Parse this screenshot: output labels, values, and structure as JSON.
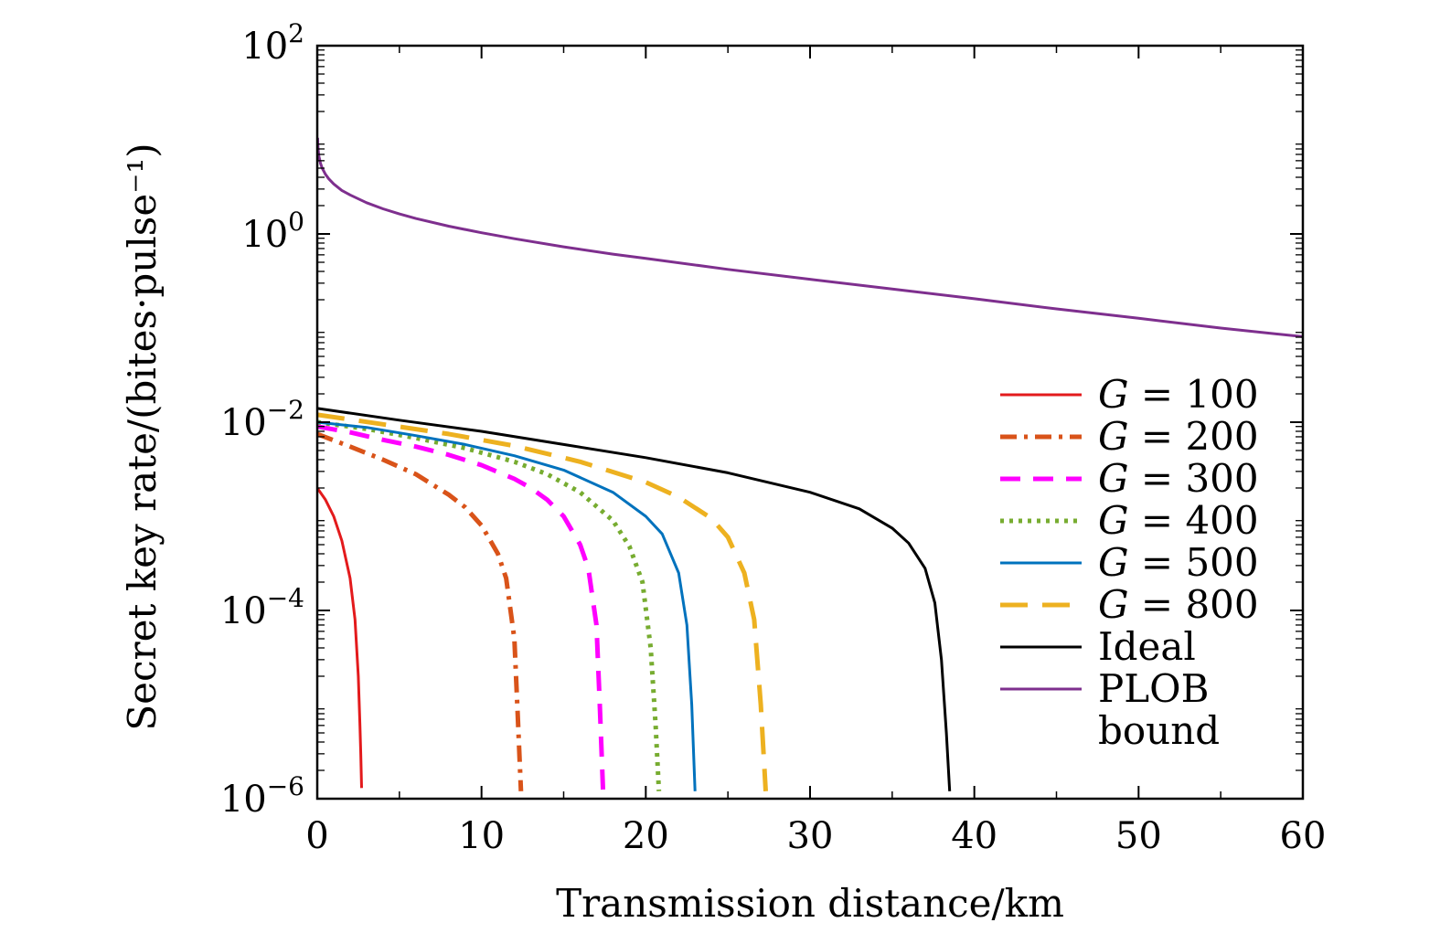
{
  "chart_data": {
    "type": "line",
    "xlabel": "Transmission distance/km",
    "ylabel": "Secret key rate/(bites·pulse⁻¹)",
    "xlim": [
      0,
      60
    ],
    "ylim": [
      1e-06,
      100
    ],
    "y_scale": "log",
    "x_ticks": [
      0,
      10,
      20,
      30,
      40,
      50,
      60
    ],
    "x_tick_labels": [
      "0",
      "10",
      "20",
      "30",
      "40",
      "50",
      "60"
    ],
    "y_ticks": [
      1e-06,
      0.0001,
      0.01,
      1,
      100
    ],
    "y_tick_labels": [
      {
        "base": "10",
        "exp": "−6"
      },
      {
        "base": "10",
        "exp": "−4"
      },
      {
        "base": "10",
        "exp": "−2"
      },
      {
        "base": "10",
        "exp": "0"
      },
      {
        "base": "10",
        "exp": "2"
      }
    ],
    "grid": false,
    "legend_position": "lower-right",
    "series": [
      {
        "name": "G = 100",
        "prefix": "G",
        "rest": " = 100",
        "color": "#e31a1c",
        "dash": "solid",
        "x": [
          0,
          0.5,
          1,
          1.5,
          2,
          2.3,
          2.5,
          2.6,
          2.65,
          2.7
        ],
        "y": [
          0.002,
          0.0015,
          0.001,
          0.00055,
          0.00022,
          8e-05,
          2e-05,
          6e-06,
          3e-06,
          1.3e-06
        ]
      },
      {
        "name": "G = 200",
        "prefix": "G",
        "rest": " = 200",
        "color": "#d95319",
        "dash": "dashdot",
        "x": [
          0,
          2,
          4,
          6,
          8,
          9,
          10,
          11,
          11.5,
          12,
          12.2,
          12.4
        ],
        "y": [
          0.0075,
          0.0055,
          0.004,
          0.0028,
          0.0017,
          0.00125,
          0.0008,
          0.0004,
          0.00022,
          5e-05,
          8e-06,
          1.2e-06
        ]
      },
      {
        "name": "G = 300",
        "prefix": "G",
        "rest": " = 300",
        "color": "#ff00ff",
        "dash": "dash",
        "x": [
          0,
          2,
          4,
          6,
          8,
          10,
          12,
          13,
          14,
          15,
          16,
          16.5,
          17,
          17.2,
          17.4
        ],
        "y": [
          0.009,
          0.0078,
          0.0065,
          0.0055,
          0.0045,
          0.0035,
          0.0025,
          0.002,
          0.0015,
          0.001,
          0.0005,
          0.00028,
          7e-05,
          1e-05,
          1.2e-06
        ]
      },
      {
        "name": "G = 400",
        "prefix": "G",
        "rest": " = 400",
        "color": "#77ac30",
        "dash": "dot",
        "x": [
          0,
          3,
          6,
          9,
          12,
          14,
          16,
          18,
          19,
          19.8,
          20.3,
          20.6,
          20.8
        ],
        "y": [
          0.01,
          0.0085,
          0.0068,
          0.0053,
          0.0038,
          0.0028,
          0.0018,
          0.0009,
          0.00048,
          0.0002,
          4e-05,
          6e-06,
          1.2e-06
        ]
      },
      {
        "name": "G = 500",
        "prefix": "G",
        "rest": " = 500",
        "color": "#0072bd",
        "dash": "solid",
        "x": [
          0,
          3,
          6,
          9,
          12,
          15,
          18,
          20,
          21,
          22,
          22.5,
          22.8,
          23
        ],
        "y": [
          0.01,
          0.0088,
          0.0072,
          0.0058,
          0.0044,
          0.0031,
          0.0018,
          0.001,
          0.00065,
          0.00025,
          7e-05,
          1e-05,
          1.2e-06
        ]
      },
      {
        "name": "G = 800",
        "prefix": "G",
        "rest": " = 800",
        "color": "#edb120",
        "dash": "longdash",
        "x": [
          0,
          4,
          8,
          12,
          16,
          20,
          22,
          24,
          25,
          26,
          26.6,
          27,
          27.3
        ],
        "y": [
          0.012,
          0.0095,
          0.0075,
          0.0056,
          0.0038,
          0.0023,
          0.0016,
          0.00095,
          0.0006,
          0.00025,
          8e-05,
          1e-05,
          1.2e-06
        ]
      },
      {
        "name": "Ideal",
        "prefix": "",
        "rest": "Ideal",
        "color": "#000000",
        "dash": "solid",
        "x": [
          0,
          5,
          10,
          15,
          20,
          25,
          30,
          33,
          35,
          36,
          37,
          37.6,
          38,
          38.3,
          38.5
        ],
        "y": [
          0.014,
          0.0105,
          0.008,
          0.0058,
          0.0042,
          0.0029,
          0.0018,
          0.0012,
          0.00075,
          0.00052,
          0.00028,
          0.00012,
          3e-05,
          5e-06,
          1.2e-06
        ]
      },
      {
        "name": "PLOB bound",
        "prefix": "",
        "rest": "PLOB",
        "rest2": "bound",
        "color": "#7e2f8e",
        "dash": "solid",
        "x": [
          0.02,
          0.05,
          0.1,
          0.2,
          0.3,
          0.5,
          0.7,
          1,
          1.5,
          2,
          3,
          4,
          5,
          6,
          8,
          10,
          12,
          15,
          18,
          20,
          25,
          30,
          35,
          40,
          45,
          50,
          55,
          60
        ],
        "y": [
          10.5,
          8.0,
          6.7,
          5.6,
          5.0,
          4.3,
          3.85,
          3.4,
          2.9,
          2.6,
          2.15,
          1.85,
          1.63,
          1.46,
          1.21,
          1.03,
          0.89,
          0.73,
          0.61,
          0.55,
          0.42,
          0.33,
          0.26,
          0.205,
          0.16,
          0.127,
          0.1,
          0.081
        ]
      }
    ]
  }
}
